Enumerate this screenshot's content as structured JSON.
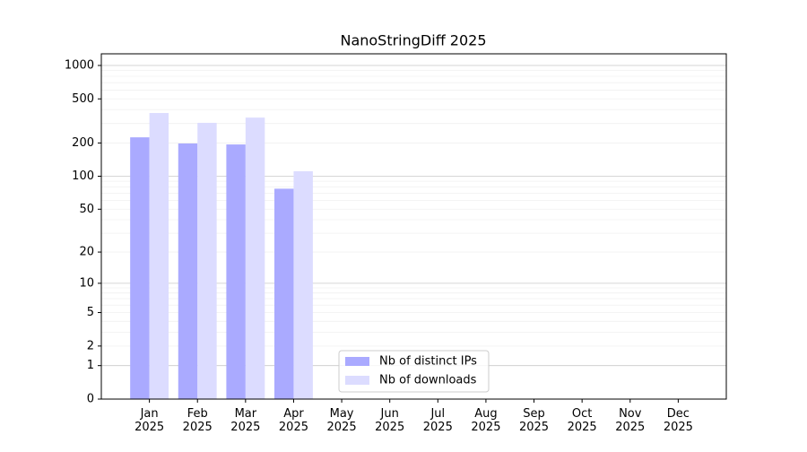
{
  "chart_data": {
    "type": "bar",
    "title": "NanoStringDiff 2025",
    "categories": [
      "Jan 2025",
      "Feb 2025",
      "Mar 2025",
      "Apr 2025",
      "May 2025",
      "Jun 2025",
      "Jul 2025",
      "Aug 2025",
      "Sep 2025",
      "Oct 2025",
      "Nov 2025",
      "Dec 2025"
    ],
    "series": [
      {
        "name": "Nb of distinct IPs",
        "color": "#aaaaff",
        "values": [
          225,
          198,
          194,
          77,
          null,
          null,
          null,
          null,
          null,
          null,
          null,
          null
        ]
      },
      {
        "name": "Nb of downloads",
        "color": "#dcdcff",
        "values": [
          373,
          304,
          339,
          111,
          null,
          null,
          null,
          null,
          null,
          null,
          null,
          null
        ]
      }
    ],
    "yscale": "log1p",
    "ylim": [
      0,
      1273
    ],
    "yticks": [
      0,
      1,
      2,
      5,
      10,
      20,
      50,
      100,
      200,
      500,
      1000
    ],
    "grid": true,
    "legend": "lower center"
  }
}
